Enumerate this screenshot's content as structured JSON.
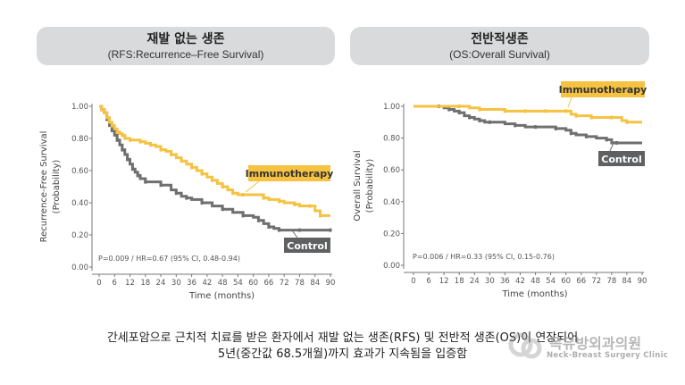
{
  "panels": [
    {
      "title_ko": "재발 없는 생존",
      "title_en": "(RFS:Recurrence–Free Survival)"
    },
    {
      "title_ko": "전반적생존",
      "title_en": "(OS:Overall Survival)"
    }
  ],
  "colors": {
    "immunotherapy": "#f5c242",
    "control": "#6e6f71",
    "pill_bg": "#d9dadb"
  },
  "chart_data": [
    {
      "type": "line",
      "step": true,
      "title": "재발 없는 생존 (RFS:Recurrence–Free Survival)",
      "xlabel": "Time (months)",
      "ylabel": "Recurrence-Free Survival",
      "ylabel2": "(Probability)",
      "xlim": [
        0,
        90
      ],
      "ylim": [
        0,
        1
      ],
      "xticks": [
        "0",
        "6",
        "12",
        "18",
        "24",
        "30",
        "36",
        "42",
        "48",
        "54",
        "60",
        "66",
        "72",
        "78",
        "84",
        "90"
      ],
      "yticks": [
        "0.00",
        "0.20",
        "0.40",
        "0.60",
        "0.80",
        "1.00"
      ],
      "annotation": "P=0.009 / HR=0.67 (95% CI, 0.48-0.94)",
      "series": [
        {
          "name": "Immunotherapy",
          "x": [
            0,
            1,
            2,
            3,
            4,
            5,
            6,
            7,
            8,
            9,
            10,
            12,
            14,
            16,
            18,
            20,
            22,
            24,
            26,
            28,
            30,
            32,
            34,
            36,
            38,
            40,
            42,
            44,
            46,
            48,
            50,
            52,
            54,
            56,
            60,
            64,
            66,
            70,
            72,
            76,
            78,
            82,
            84,
            86,
            90
          ],
          "y": [
            1.0,
            0.98,
            0.96,
            0.93,
            0.9,
            0.88,
            0.86,
            0.84,
            0.83,
            0.82,
            0.8,
            0.79,
            0.79,
            0.78,
            0.77,
            0.76,
            0.75,
            0.73,
            0.72,
            0.7,
            0.68,
            0.66,
            0.64,
            0.62,
            0.6,
            0.58,
            0.56,
            0.54,
            0.52,
            0.5,
            0.48,
            0.46,
            0.45,
            0.45,
            0.45,
            0.43,
            0.42,
            0.41,
            0.4,
            0.39,
            0.38,
            0.38,
            0.35,
            0.32,
            0.32
          ]
        },
        {
          "name": "Control",
          "x": [
            0,
            1,
            2,
            3,
            4,
            5,
            6,
            7,
            8,
            9,
            10,
            11,
            12,
            13,
            14,
            15,
            16,
            18,
            20,
            24,
            28,
            30,
            32,
            34,
            36,
            40,
            44,
            48,
            52,
            56,
            60,
            62,
            64,
            66,
            68,
            70,
            74,
            78,
            84,
            90
          ],
          "y": [
            1.0,
            0.98,
            0.96,
            0.92,
            0.88,
            0.85,
            0.82,
            0.79,
            0.76,
            0.73,
            0.7,
            0.67,
            0.64,
            0.61,
            0.59,
            0.57,
            0.55,
            0.53,
            0.53,
            0.51,
            0.48,
            0.46,
            0.44,
            0.43,
            0.42,
            0.4,
            0.38,
            0.36,
            0.34,
            0.32,
            0.31,
            0.29,
            0.27,
            0.25,
            0.24,
            0.23,
            0.23,
            0.23,
            0.23,
            0.23
          ]
        }
      ],
      "legend": [
        "Immunotherapy",
        "Control"
      ]
    },
    {
      "type": "line",
      "step": true,
      "title": "전반적생존 (OS:Overall Survival)",
      "xlabel": "Time (months)",
      "ylabel": "Overall Survival",
      "ylabel2": "(Probability)",
      "xlim": [
        0,
        90
      ],
      "ylim": [
        0,
        1
      ],
      "xticks": [
        "0",
        "6",
        "12",
        "18",
        "24",
        "30",
        "36",
        "42",
        "48",
        "54",
        "60",
        "66",
        "72",
        "78",
        "84",
        "90"
      ],
      "yticks": [
        "0.00",
        "0.20",
        "0.40",
        "0.60",
        "0.80",
        "1.00"
      ],
      "annotation": "P=0.006 / HR=0.33 (95% CI, 0.15-0.76)",
      "series": [
        {
          "name": "Immunotherapy",
          "x": [
            0,
            18,
            22,
            26,
            30,
            36,
            40,
            44,
            48,
            52,
            56,
            60,
            62,
            64,
            66,
            70,
            74,
            78,
            82,
            84,
            90
          ],
          "y": [
            1.0,
            1.0,
            0.99,
            0.98,
            0.98,
            0.97,
            0.97,
            0.97,
            0.97,
            0.97,
            0.97,
            0.97,
            0.95,
            0.94,
            0.94,
            0.93,
            0.93,
            0.93,
            0.91,
            0.9,
            0.9
          ]
        },
        {
          "name": "Control",
          "x": [
            0,
            10,
            12,
            14,
            16,
            18,
            20,
            22,
            24,
            26,
            28,
            30,
            36,
            40,
            44,
            48,
            52,
            56,
            60,
            62,
            64,
            68,
            72,
            76,
            78,
            80,
            90
          ],
          "y": [
            1.0,
            1.0,
            0.99,
            0.98,
            0.97,
            0.96,
            0.94,
            0.93,
            0.92,
            0.91,
            0.9,
            0.9,
            0.89,
            0.88,
            0.87,
            0.87,
            0.87,
            0.86,
            0.85,
            0.83,
            0.82,
            0.81,
            0.8,
            0.79,
            0.77,
            0.77,
            0.77
          ]
        }
      ],
      "legend": [
        "Immunotherapy",
        "Control"
      ]
    }
  ],
  "caption": {
    "line1": "간세포암으로 근치적 치료를 받은 환자에서 재발 없는 생존(RFS) 및 전반적 생존(OS)이 연장되어",
    "line2": "5년(중간값 68.5개월)까지 효과가 지속됨을 입증함"
  },
  "watermark": {
    "name_ko": "목유방외과의원",
    "name_en": "Neck-Breast Surgery Clinic"
  }
}
